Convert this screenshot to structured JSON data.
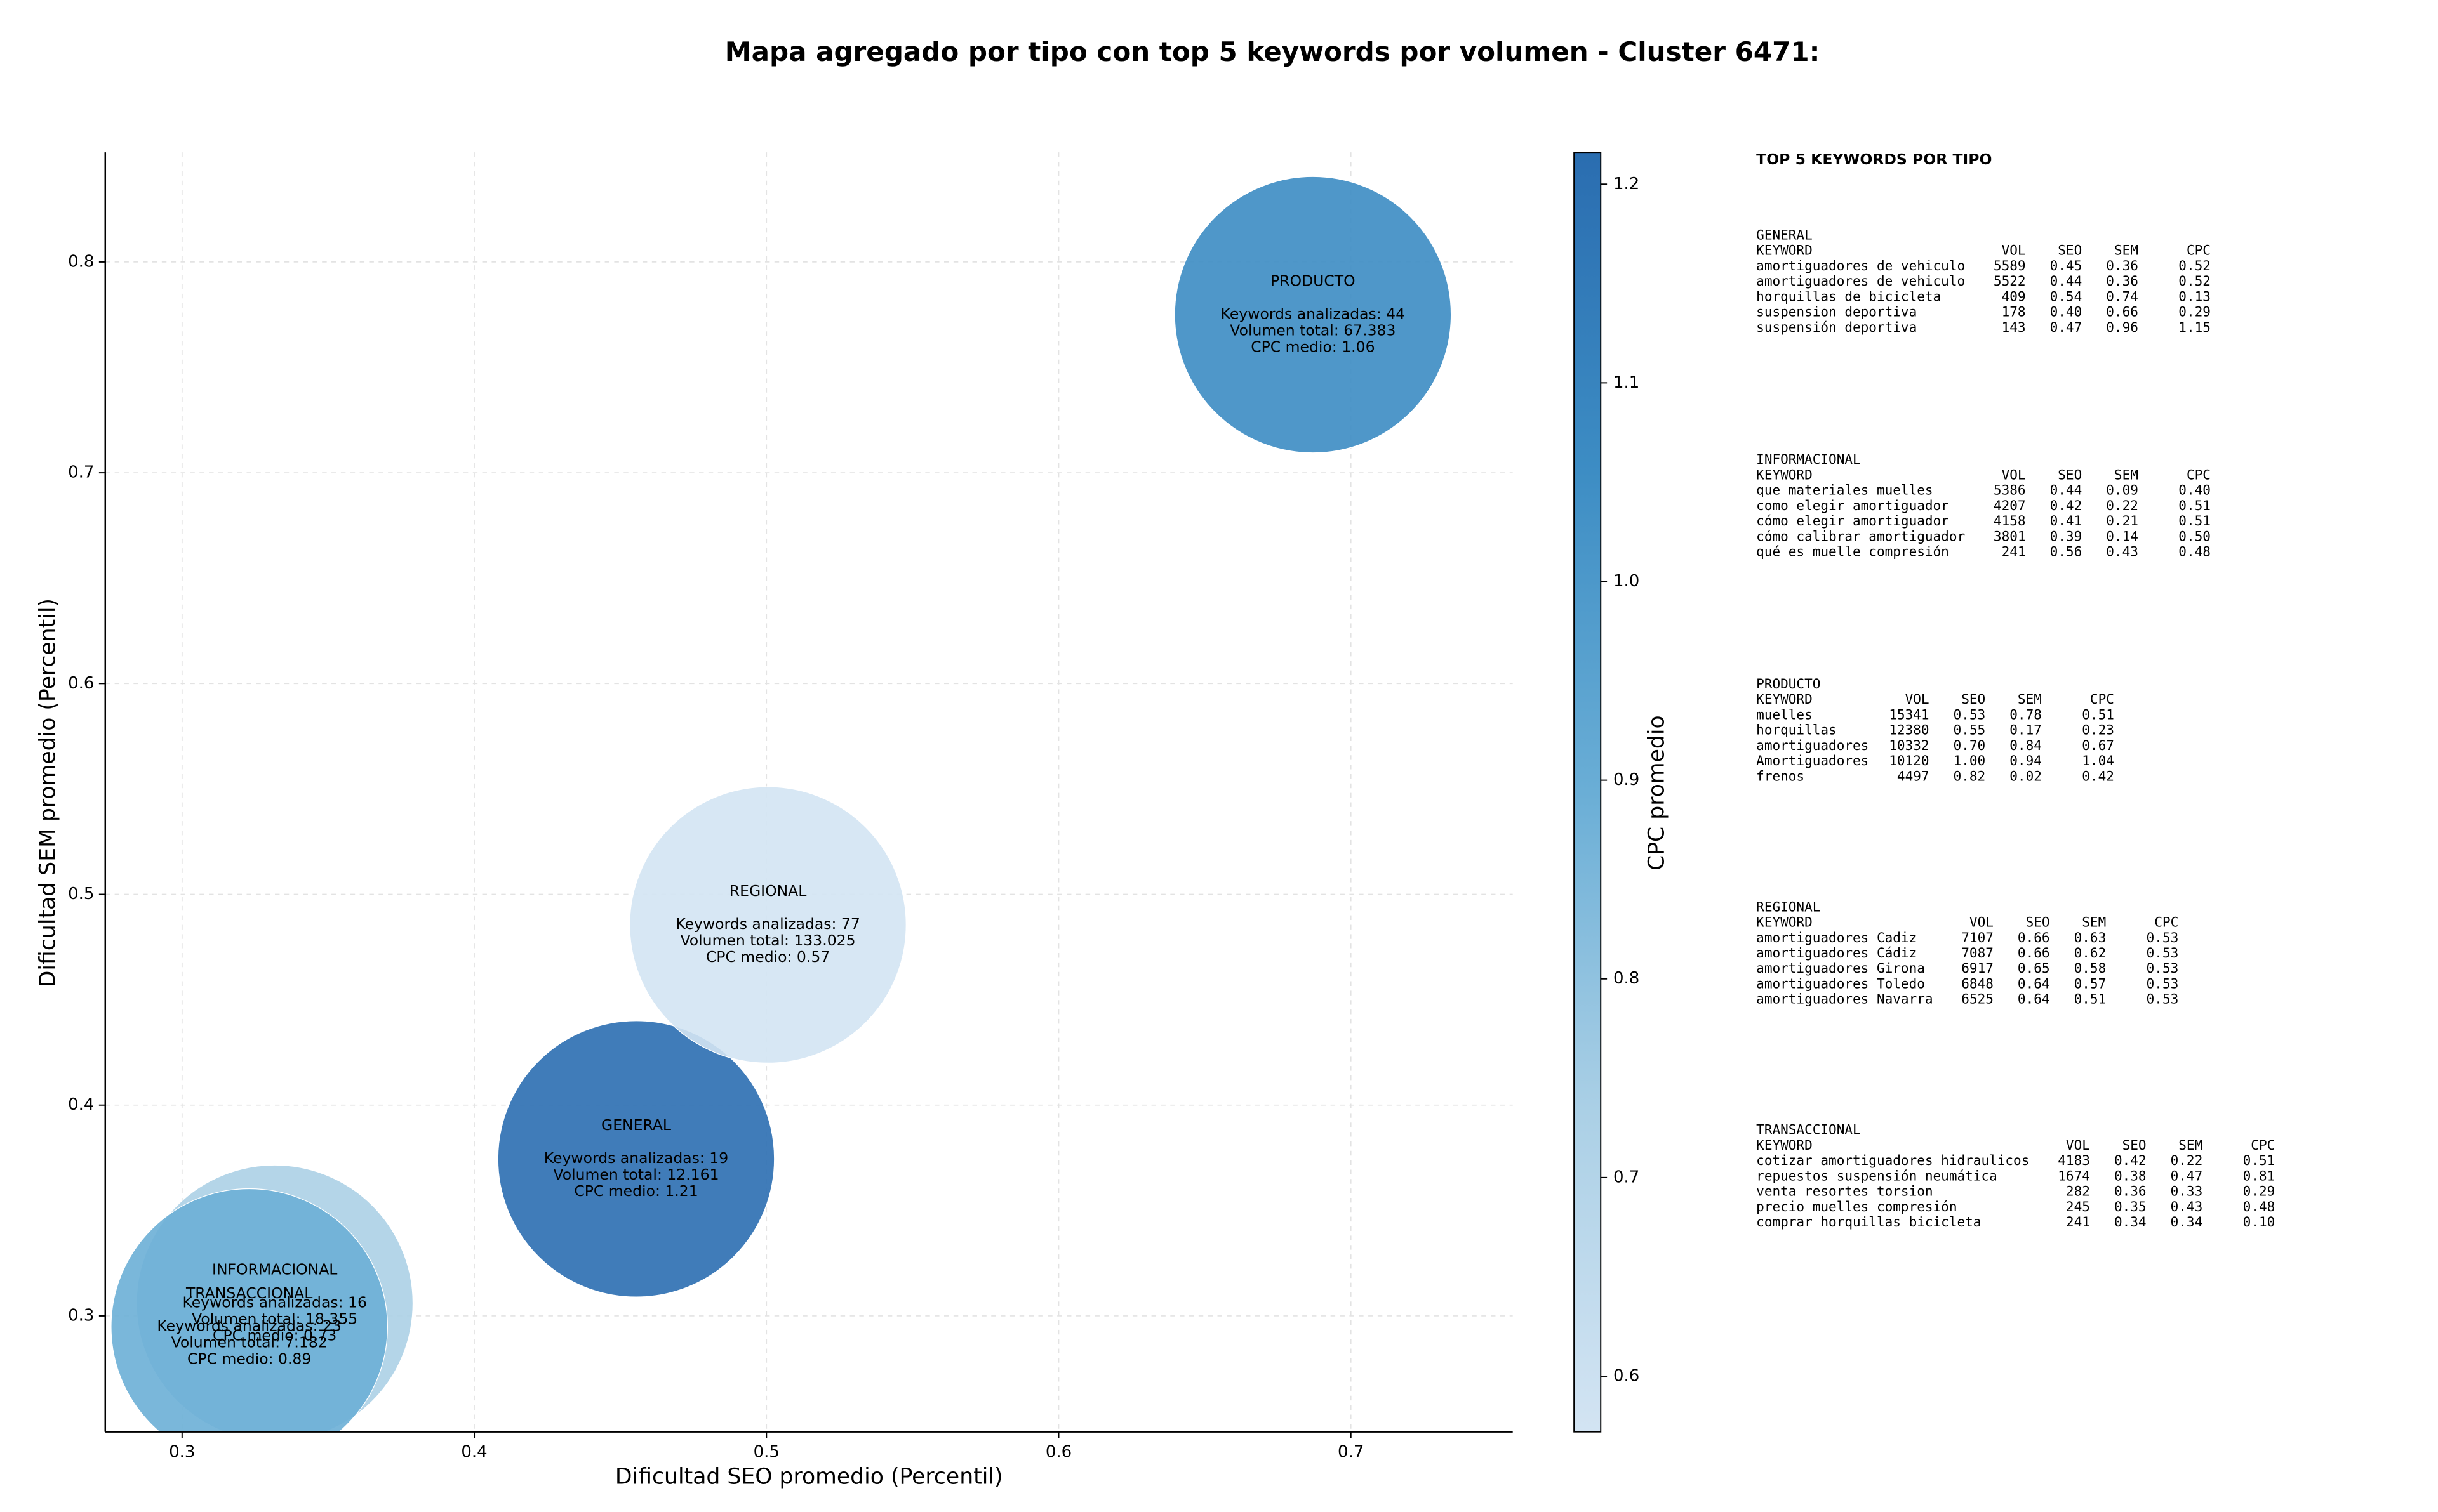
{
  "chart_data": {
    "type": "scatter",
    "title": "Mapa agregado por tipo con top 5 keywords por volumen - Cluster 6471:",
    "xlabel": "Dificultad SEO promedio (Percentil)",
    "ylabel": "Dificultad SEM promedio (Percentil)",
    "xlim": [
      0.2737,
      0.7554
    ],
    "ylim": [
      0.245,
      0.852
    ],
    "xticks": [
      0.3,
      0.4,
      0.5,
      0.6,
      0.7
    ],
    "yticks": [
      0.3,
      0.4,
      0.5,
      0.6,
      0.7,
      0.8
    ],
    "grid": true,
    "colorbar": {
      "label": "CPC promedio",
      "lim": [
        0.572,
        1.216
      ],
      "ticks": [
        0.6,
        0.7,
        0.8,
        0.9,
        {
          "value": 1,
          "label": "1.0"
        },
        1.1,
        1.2
      ],
      "colormap": [
        "#d3e4f3",
        "#abd0e6",
        "#6aaed6",
        "#3d8dc4",
        "#2a6db0"
      ]
    },
    "points": [
      {
        "name": "GENERAL",
        "x": 0.4554,
        "y": 0.3745,
        "cpc": 1.21,
        "lines": [
          "Keywords analizadas: 19",
          "Volumen total: 12.161",
          "CPC medio: 1.21"
        ]
      },
      {
        "name": "INFORMACIONAL",
        "x": 0.3317,
        "y": 0.306,
        "cpc": 0.73,
        "lines": [
          "Keywords analizadas: 16",
          "Volumen total: 18.355",
          "CPC medio: 0.73"
        ]
      },
      {
        "name": "PRODUCTO",
        "x": 0.687,
        "y": 0.775,
        "cpc": 1.06,
        "lines": [
          "Keywords analizadas: 44",
          "Volumen total: 67.383",
          "CPC medio: 1.06"
        ]
      },
      {
        "name": "REGIONAL",
        "x": 0.5005,
        "y": 0.4855,
        "cpc": 0.57,
        "lines": [
          "Keywords analizadas: 77",
          "Volumen total: 133.025",
          "CPC medio: 0.57"
        ]
      },
      {
        "name": "TRANSACCIONAL",
        "x": 0.323,
        "y": 0.2948,
        "cpc": 0.89,
        "lines": [
          "Keywords analizadas: 23",
          "Volumen total: 7.182",
          "CPC medio: 0.89"
        ]
      }
    ]
  },
  "panel": {
    "title": "TOP 5 KEYWORDS POR TIPO",
    "sections": [
      {
        "name": "GENERAL",
        "columns": [
          "KEYWORD",
          "VOL",
          "SEO",
          "SEM",
          "CPC"
        ],
        "rows": [
          [
            "amortiguadores de vehiculo",
            "5589",
            "0.45",
            "0.36",
            "0.52"
          ],
          [
            "amortiguadores de vehiculo",
            "5522",
            "0.44",
            "0.36",
            "0.52"
          ],
          [
            "horquillas de bicicleta",
            "409",
            "0.54",
            "0.74",
            "0.13"
          ],
          [
            "suspension deportiva",
            "178",
            "0.40",
            "0.66",
            "0.29"
          ],
          [
            "suspensión deportiva",
            "143",
            "0.47",
            "0.96",
            "1.15"
          ]
        ]
      },
      {
        "name": "INFORMACIONAL",
        "columns": [
          "KEYWORD",
          "VOL",
          "SEO",
          "SEM",
          "CPC"
        ],
        "rows": [
          [
            "que materiales muelles",
            "5386",
            "0.44",
            "0.09",
            "0.40"
          ],
          [
            "como elegir amortiguador",
            "4207",
            "0.42",
            "0.22",
            "0.51"
          ],
          [
            "cómo elegir amortiguador",
            "4158",
            "0.41",
            "0.21",
            "0.51"
          ],
          [
            "cómo calibrar amortiguador",
            "3801",
            "0.39",
            "0.14",
            "0.50"
          ],
          [
            "qué es muelle compresión",
            "241",
            "0.56",
            "0.43",
            "0.48"
          ]
        ]
      },
      {
        "name": "PRODUCTO",
        "columns": [
          "KEYWORD",
          "VOL",
          "SEO",
          "SEM",
          "CPC"
        ],
        "rows": [
          [
            "muelles",
            "15341",
            "0.53",
            "0.78",
            "0.51"
          ],
          [
            "horquillas",
            "12380",
            "0.55",
            "0.17",
            "0.23"
          ],
          [
            "amortiguadores",
            "10332",
            "0.70",
            "0.84",
            "0.67"
          ],
          [
            "Amortiguadores",
            "10120",
            "1.00",
            "0.94",
            "1.04"
          ],
          [
            "frenos",
            "4497",
            "0.82",
            "0.02",
            "0.42"
          ]
        ]
      },
      {
        "name": "REGIONAL",
        "columns": [
          "KEYWORD",
          "VOL",
          "SEO",
          "SEM",
          "CPC"
        ],
        "rows": [
          [
            "amortiguadores Cadiz",
            "7107",
            "0.66",
            "0.63",
            "0.53"
          ],
          [
            "amortiguadores Cádiz",
            "7087",
            "0.66",
            "0.62",
            "0.53"
          ],
          [
            "amortiguadores Girona",
            "6917",
            "0.65",
            "0.58",
            "0.53"
          ],
          [
            "amortiguadores Toledo",
            "6848",
            "0.64",
            "0.57",
            "0.53"
          ],
          [
            "amortiguadores Navarra",
            "6525",
            "0.64",
            "0.51",
            "0.53"
          ]
        ]
      },
      {
        "name": "TRANSACCIONAL",
        "columns": [
          "KEYWORD",
          "VOL",
          "SEO",
          "SEM",
          "CPC"
        ],
        "rows": [
          [
            "cotizar amortiguadores hidraulicos",
            "4183",
            "0.42",
            "0.22",
            "0.51"
          ],
          [
            "repuestos suspensión neumática",
            "1674",
            "0.38",
            "0.47",
            "0.81"
          ],
          [
            "venta resortes torsion",
            "282",
            "0.36",
            "0.33",
            "0.29"
          ],
          [
            "precio muelles compresión",
            "245",
            "0.35",
            "0.43",
            "0.48"
          ],
          [
            "comprar horquillas bicicleta",
            "241",
            "0.34",
            "0.34",
            "0.10"
          ]
        ]
      }
    ]
  }
}
